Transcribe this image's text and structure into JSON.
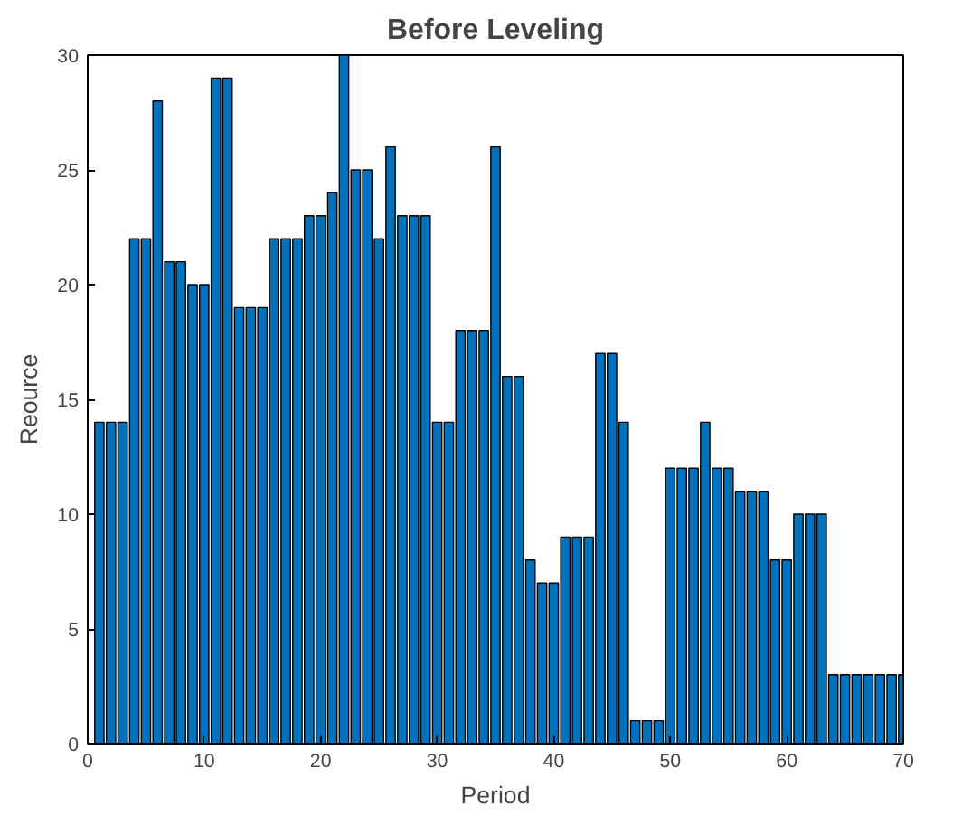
{
  "chart_data": {
    "type": "bar",
    "title": "Before Leveling",
    "xlabel": "Period",
    "ylabel": "Reource",
    "x": [
      1,
      2,
      3,
      4,
      5,
      6,
      7,
      8,
      9,
      10,
      11,
      12,
      13,
      14,
      15,
      16,
      17,
      18,
      19,
      20,
      21,
      22,
      23,
      24,
      25,
      26,
      27,
      28,
      29,
      30,
      31,
      32,
      33,
      34,
      35,
      36,
      37,
      38,
      39,
      40,
      41,
      42,
      43,
      44,
      45,
      46,
      47,
      48,
      49,
      50,
      51,
      52,
      53,
      54,
      55,
      56,
      57,
      58,
      59,
      60,
      61,
      62,
      63,
      64,
      65,
      66,
      67,
      68,
      69,
      70
    ],
    "values": [
      14,
      14,
      14,
      22,
      22,
      28,
      21,
      21,
      20,
      20,
      29,
      29,
      19,
      19,
      19,
      22,
      22,
      22,
      23,
      23,
      24,
      30,
      25,
      25,
      22,
      26,
      23,
      23,
      23,
      14,
      14,
      18,
      18,
      18,
      26,
      16,
      16,
      8,
      7,
      7,
      9,
      9,
      9,
      17,
      17,
      14,
      1,
      1,
      1,
      12,
      12,
      12,
      14,
      12,
      12,
      11,
      11,
      11,
      8,
      8,
      10,
      10,
      10,
      3,
      3,
      3,
      3,
      3,
      3,
      3
    ],
    "color": "#0072bd",
    "xlim": [
      0,
      70
    ],
    "xticks": [
      0,
      10,
      20,
      30,
      40,
      50,
      60,
      70
    ],
    "ylim": [
      0,
      30
    ],
    "yticks": [
      0,
      5,
      10,
      15,
      20,
      25,
      30
    ],
    "grid": false
  }
}
